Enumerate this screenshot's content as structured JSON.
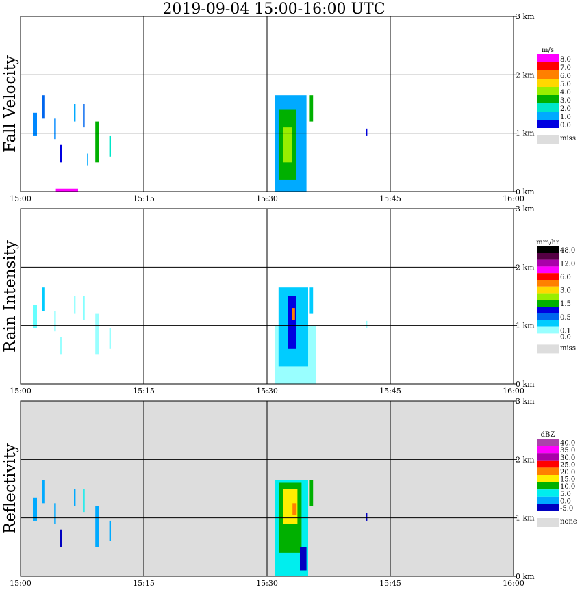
{
  "title": "2019-09-04   15:00-16:00 UTC",
  "time_ticks": [
    "15:00",
    "15:15",
    "15:30",
    "15:45",
    "16:00"
  ],
  "height_ticks": [
    "0 km",
    "1 km",
    "2 km",
    "3 km"
  ],
  "chart_data": [
    {
      "type": "heatmap",
      "ylabel": "Fall Velocity",
      "x_range": [
        "15:00",
        "16:00"
      ],
      "y_range_km": [
        0,
        3.0
      ],
      "grid": true,
      "background": "#ffffff",
      "legend": {
        "unit": "m/s",
        "placement": "right",
        "bins": [
          {
            "label": "8.0",
            "color": "#ff00ff"
          },
          {
            "label": "7.0",
            "color": "#ff0000"
          },
          {
            "label": "6.0",
            "color": "#ff8000"
          },
          {
            "label": "5.0",
            "color": "#ffd800"
          },
          {
            "label": "4.0",
            "color": "#99ee00"
          },
          {
            "label": "3.0",
            "color": "#00b000"
          },
          {
            "label": "2.0",
            "color": "#00e6c8"
          },
          {
            "label": "1.0",
            "color": "#00aaff"
          },
          {
            "label": "0.0",
            "color": "#0000e0"
          }
        ],
        "miss_label": "miss",
        "miss_color": "#dddddd"
      },
      "echoes": [
        {
          "t0": 1.5,
          "t1": 2.0,
          "z0": 0.95,
          "z1": 1.35,
          "color": "#0088ff"
        },
        {
          "t0": 2.6,
          "t1": 2.9,
          "z0": 1.25,
          "z1": 1.65,
          "color": "#0066ee"
        },
        {
          "t0": 4.1,
          "t1": 4.3,
          "z0": 0.9,
          "z1": 1.25,
          "color": "#0088ff"
        },
        {
          "t0": 4.8,
          "t1": 5.0,
          "z0": 0.5,
          "z1": 0.8,
          "color": "#0000e0"
        },
        {
          "t0": 6.5,
          "t1": 6.7,
          "z0": 1.2,
          "z1": 1.5,
          "color": "#00aaff"
        },
        {
          "t0": 7.6,
          "t1": 7.8,
          "z0": 1.1,
          "z1": 1.5,
          "color": "#0066ee"
        },
        {
          "t0": 8.1,
          "t1": 8.25,
          "z0": 0.45,
          "z1": 0.65,
          "color": "#00aaff"
        },
        {
          "t0": 9.1,
          "t1": 9.5,
          "z0": 0.5,
          "z1": 1.2,
          "color": "#00b000"
        },
        {
          "t0": 10.8,
          "t1": 11.0,
          "z0": 0.6,
          "z1": 0.95,
          "color": "#00e6c8"
        },
        {
          "t0": 31.0,
          "t1": 34.8,
          "z0": 0.0,
          "z1": 1.65,
          "color": "#00aaff"
        },
        {
          "t0": 31.5,
          "t1": 33.5,
          "z0": 0.2,
          "z1": 1.4,
          "color": "#00b000"
        },
        {
          "t0": 32.0,
          "t1": 33.0,
          "z0": 0.5,
          "z1": 1.1,
          "color": "#99ee00"
        },
        {
          "t0": 35.2,
          "t1": 35.6,
          "z0": 1.2,
          "z1": 1.65,
          "color": "#00b000"
        },
        {
          "t0": 42.0,
          "t1": 42.2,
          "z0": 0.95,
          "z1": 1.08,
          "color": "#0000e0"
        },
        {
          "t0": 4.3,
          "t1": 7.0,
          "z0": 0.0,
          "z1": 0.05,
          "color": "#ff00ff"
        }
      ]
    },
    {
      "type": "heatmap",
      "ylabel": "Rain Intensity",
      "x_range": [
        "15:00",
        "16:00"
      ],
      "y_range_km": [
        0,
        3.0
      ],
      "grid": true,
      "background": "#ffffff",
      "legend": {
        "unit": "mm/hr",
        "placement": "right",
        "bins": [
          {
            "label": "48.0",
            "color": "#000000"
          },
          {
            "label": "",
            "color": "#550044"
          },
          {
            "label": "12.0",
            "color": "#aa00aa"
          },
          {
            "label": "",
            "color": "#ff00ff"
          },
          {
            "label": "6.0",
            "color": "#ff0000"
          },
          {
            "label": "",
            "color": "#ff8000"
          },
          {
            "label": "3.0",
            "color": "#ffd800"
          },
          {
            "label": "",
            "color": "#99ee00"
          },
          {
            "label": "1.5",
            "color": "#00b000"
          },
          {
            "label": "",
            "color": "#0000e0"
          },
          {
            "label": "0.5",
            "color": "#0066ee"
          },
          {
            "label": "",
            "color": "#00ccff"
          },
          {
            "label": "0.1",
            "color": "#99ffff"
          }
        ],
        "zero_label": "0.0",
        "miss_label": "miss",
        "miss_color": "#dddddd"
      },
      "echoes": [
        {
          "t0": 1.5,
          "t1": 2.0,
          "z0": 0.95,
          "z1": 1.35,
          "color": "#66ffff"
        },
        {
          "t0": 2.6,
          "t1": 2.9,
          "z0": 1.25,
          "z1": 1.65,
          "color": "#00ccff"
        },
        {
          "t0": 4.1,
          "t1": 4.3,
          "z0": 0.9,
          "z1": 1.25,
          "color": "#99ffff"
        },
        {
          "t0": 4.8,
          "t1": 5.0,
          "z0": 0.5,
          "z1": 0.8,
          "color": "#99ffff"
        },
        {
          "t0": 6.5,
          "t1": 6.7,
          "z0": 1.2,
          "z1": 1.5,
          "color": "#99ffff"
        },
        {
          "t0": 7.6,
          "t1": 7.8,
          "z0": 1.1,
          "z1": 1.5,
          "color": "#66ffff"
        },
        {
          "t0": 9.1,
          "t1": 9.5,
          "z0": 0.5,
          "z1": 1.2,
          "color": "#99ffff"
        },
        {
          "t0": 10.8,
          "t1": 11.0,
          "z0": 0.6,
          "z1": 0.95,
          "color": "#99ffff"
        },
        {
          "t0": 31.0,
          "t1": 36.0,
          "z0": 0.0,
          "z1": 1.0,
          "color": "#99ffff"
        },
        {
          "t0": 31.4,
          "t1": 35.0,
          "z0": 0.3,
          "z1": 1.65,
          "color": "#00ccff"
        },
        {
          "t0": 32.5,
          "t1": 33.5,
          "z0": 0.6,
          "z1": 1.5,
          "color": "#0000e0"
        },
        {
          "t0": 33.0,
          "t1": 33.4,
          "z0": 1.1,
          "z1": 1.3,
          "color": "#ff8000"
        },
        {
          "t0": 35.2,
          "t1": 35.6,
          "z0": 1.2,
          "z1": 1.65,
          "color": "#00ccff"
        },
        {
          "t0": 42.0,
          "t1": 42.2,
          "z0": 0.95,
          "z1": 1.08,
          "color": "#99ffff"
        }
      ]
    },
    {
      "type": "heatmap",
      "ylabel": "Reflectivity",
      "x_range": [
        "15:00",
        "16:00"
      ],
      "y_range_km": [
        0,
        3.0
      ],
      "grid": true,
      "background": "#dddddd",
      "legend": {
        "unit": "dBZ",
        "placement": "right",
        "bins": [
          {
            "label": "40.0",
            "color": "#aa44aa"
          },
          {
            "label": "35.0",
            "color": "#ff00ff"
          },
          {
            "label": "30.0",
            "color": "#aa00aa"
          },
          {
            "label": "25.0",
            "color": "#ff0000"
          },
          {
            "label": "20.0",
            "color": "#ff8000"
          },
          {
            "label": "15.0",
            "color": "#ffee00"
          },
          {
            "label": "10.0",
            "color": "#00b000"
          },
          {
            "label": "5.0",
            "color": "#00eeee"
          },
          {
            "label": "0.0",
            "color": "#00aaff"
          },
          {
            "label": "-5.0",
            "color": "#0000c0"
          }
        ],
        "none_label": "none",
        "none_color": "#dddddd"
      },
      "echoes": [
        {
          "t0": 1.5,
          "t1": 2.0,
          "z0": 0.95,
          "z1": 1.35,
          "color": "#00aaff"
        },
        {
          "t0": 2.6,
          "t1": 2.9,
          "z0": 1.25,
          "z1": 1.65,
          "color": "#00aaff"
        },
        {
          "t0": 4.1,
          "t1": 4.3,
          "z0": 0.9,
          "z1": 1.25,
          "color": "#00aaff"
        },
        {
          "t0": 4.8,
          "t1": 5.0,
          "z0": 0.5,
          "z1": 0.8,
          "color": "#0000c0"
        },
        {
          "t0": 6.5,
          "t1": 6.7,
          "z0": 1.2,
          "z1": 1.5,
          "color": "#00aaff"
        },
        {
          "t0": 7.6,
          "t1": 7.8,
          "z0": 1.1,
          "z1": 1.5,
          "color": "#00eeee"
        },
        {
          "t0": 9.1,
          "t1": 9.5,
          "z0": 0.5,
          "z1": 1.2,
          "color": "#00aaff"
        },
        {
          "t0": 10.8,
          "t1": 11.0,
          "z0": 0.6,
          "z1": 0.95,
          "color": "#00aaff"
        },
        {
          "t0": 31.0,
          "t1": 35.0,
          "z0": 0.0,
          "z1": 1.65,
          "color": "#00eeee"
        },
        {
          "t0": 31.5,
          "t1": 34.2,
          "z0": 0.4,
          "z1": 1.6,
          "color": "#00b000"
        },
        {
          "t0": 32.0,
          "t1": 33.7,
          "z0": 0.9,
          "z1": 1.5,
          "color": "#ffee00"
        },
        {
          "t0": 33.1,
          "t1": 33.6,
          "z0": 1.05,
          "z1": 1.25,
          "color": "#ff8000"
        },
        {
          "t0": 34.0,
          "t1": 34.8,
          "z0": 0.1,
          "z1": 0.5,
          "color": "#0000c0"
        },
        {
          "t0": 35.2,
          "t1": 35.6,
          "z0": 1.2,
          "z1": 1.65,
          "color": "#00b000"
        },
        {
          "t0": 42.0,
          "t1": 42.2,
          "z0": 0.95,
          "z1": 1.08,
          "color": "#0000c0"
        }
      ]
    }
  ]
}
